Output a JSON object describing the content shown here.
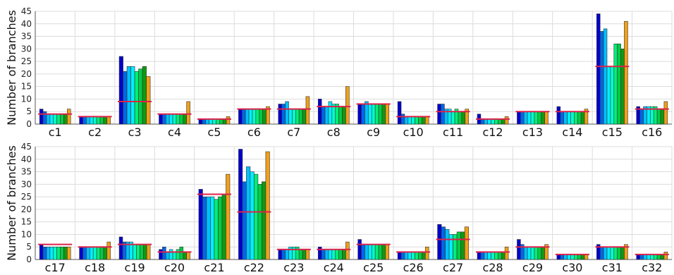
{
  "chart_data": [
    {
      "type": "bar",
      "ylabel": "Number of branches",
      "ylim": [
        0,
        45
      ],
      "yticks": [
        0,
        5,
        10,
        15,
        20,
        25,
        30,
        35,
        40,
        45
      ],
      "grid": true,
      "categories": [
        "c1",
        "c2",
        "c3",
        "c4",
        "c5",
        "c6",
        "c7",
        "c8",
        "c9",
        "c10",
        "c11",
        "c12",
        "c13",
        "c14",
        "c15",
        "c16"
      ],
      "values": [
        [
          6,
          5,
          4,
          4,
          4,
          4,
          4,
          4,
          6
        ],
        [
          3,
          3,
          3,
          3,
          3,
          3,
          3,
          3,
          3
        ],
        [
          27,
          21,
          23,
          23,
          21,
          22,
          23,
          19
        ],
        [
          4,
          4,
          4,
          4,
          4,
          4,
          4,
          4,
          9
        ],
        [
          2,
          2,
          2,
          2,
          2,
          2,
          2,
          2,
          3
        ],
        [
          6,
          6,
          6,
          6,
          6,
          6,
          6,
          6,
          7
        ],
        [
          8,
          8,
          9,
          6,
          6,
          6,
          6,
          6,
          11
        ],
        [
          10,
          7,
          7,
          9,
          8,
          8,
          7,
          7,
          15
        ],
        [
          8,
          8,
          9,
          8,
          8,
          8,
          8,
          8,
          8
        ],
        [
          9,
          4,
          3,
          3,
          3,
          3,
          3,
          3,
          3
        ],
        [
          8,
          8,
          6,
          6,
          5,
          6,
          5,
          5,
          6
        ],
        [
          4,
          2,
          2,
          2,
          2,
          2,
          2,
          2,
          3
        ],
        [
          5,
          5,
          5,
          5,
          5,
          5,
          5,
          5,
          5
        ],
        [
          7,
          5,
          5,
          5,
          5,
          5,
          5,
          5,
          6
        ],
        [
          44,
          37,
          38,
          23,
          23,
          32,
          32,
          30,
          41
        ],
        [
          7,
          6,
          7,
          7,
          7,
          7,
          6,
          6,
          9
        ]
      ],
      "means": [
        4,
        3,
        9,
        4,
        2,
        6,
        6,
        7,
        8,
        3,
        5,
        2,
        5,
        5,
        23,
        6
      ]
    },
    {
      "type": "bar",
      "ylabel": "Number of branches",
      "ylim": [
        0,
        45
      ],
      "yticks": [
        0,
        5,
        10,
        15,
        20,
        25,
        30,
        35,
        40,
        45
      ],
      "grid": true,
      "categories": [
        "c17",
        "c18",
        "c19",
        "c20",
        "c21",
        "c22",
        "c23",
        "c24",
        "c25",
        "c26",
        "c27",
        "c28",
        "c29",
        "c30",
        "c31",
        "c32"
      ],
      "values": [
        [
          6,
          5,
          5,
          5,
          5,
          5,
          5,
          5,
          5
        ],
        [
          5,
          5,
          5,
          5,
          5,
          5,
          5,
          5,
          7
        ],
        [
          9,
          7,
          7,
          7,
          6,
          6,
          6,
          6,
          6
        ],
        [
          4,
          5,
          3,
          4,
          3,
          4,
          5,
          3,
          3
        ],
        [
          28,
          25,
          25,
          25,
          24,
          25,
          26,
          34
        ],
        [
          44,
          31,
          37,
          35,
          34,
          30,
          31,
          43
        ],
        [
          4,
          4,
          4,
          5,
          5,
          5,
          4,
          4,
          4
        ],
        [
          5,
          4,
          4,
          4,
          4,
          4,
          4,
          4,
          7
        ],
        [
          8,
          6,
          6,
          6,
          6,
          6,
          6,
          6,
          6
        ],
        [
          3,
          3,
          3,
          3,
          3,
          3,
          3,
          3,
          5
        ],
        [
          14,
          13,
          12,
          10,
          10,
          11,
          11,
          13
        ],
        [
          3,
          3,
          3,
          3,
          3,
          3,
          3,
          3,
          5
        ],
        [
          8,
          6,
          5,
          5,
          5,
          5,
          5,
          5,
          6
        ],
        [
          2,
          2,
          2,
          2,
          2,
          2,
          2,
          2,
          2
        ],
        [
          6,
          5,
          5,
          5,
          5,
          5,
          5,
          5,
          6
        ],
        [
          2,
          2,
          2,
          2,
          2,
          2,
          2,
          2,
          3
        ]
      ],
      "means": [
        6,
        5,
        6,
        3,
        26,
        19,
        4,
        4,
        6,
        3,
        8,
        3,
        5,
        2,
        5,
        2
      ]
    }
  ],
  "colors": {
    "bar_gradient": [
      "#0000cc",
      "#0066e6",
      "#00c0ff",
      "#00eeff",
      "#00ffcc",
      "#00ee77",
      "#00cc44",
      "#119911",
      "#f0a018"
    ],
    "mean_line": "#e0204a",
    "bar_outline": "#333333",
    "grid": "#dcdcdc"
  }
}
